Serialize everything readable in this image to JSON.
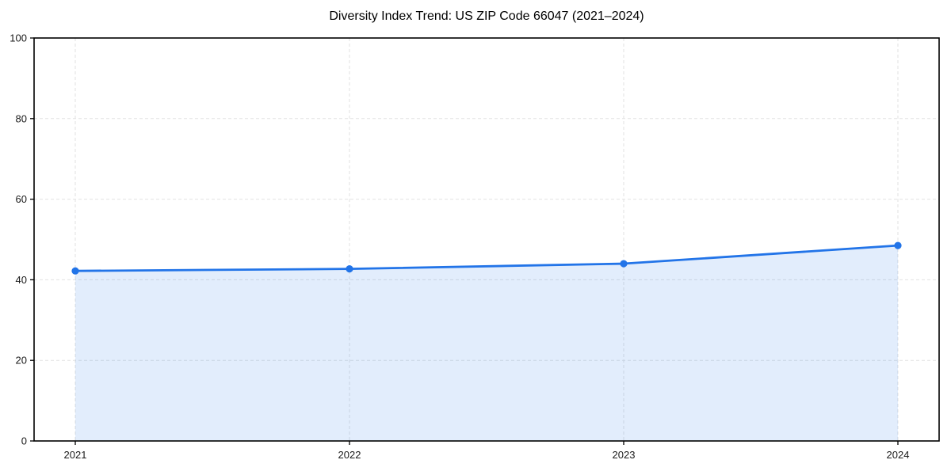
{
  "chart_data": {
    "type": "line",
    "title": "Diversity Index Trend: US ZIP Code 66047 (2021–2024)",
    "x": [
      "2021",
      "2022",
      "2023",
      "2024"
    ],
    "series": [
      {
        "name": "Diversity Index",
        "values": [
          42.2,
          42.7,
          44.0,
          48.5
        ]
      }
    ],
    "xlabel": "",
    "ylabel": "",
    "ylim": [
      0,
      100
    ],
    "yticks": [
      0,
      20,
      40,
      60,
      80,
      100
    ],
    "grid": true,
    "grid_style": "dashed",
    "legend": "none",
    "area_fill": true,
    "colors": {
      "line": "#2274e8",
      "marker": "#2274e8",
      "fill": "rgba(34,116,232,0.13)",
      "grid": "#e2e2e2",
      "axis": "#000000",
      "tick_label": "#1a1a1a",
      "title": "#000000",
      "background": "#ffffff"
    }
  }
}
